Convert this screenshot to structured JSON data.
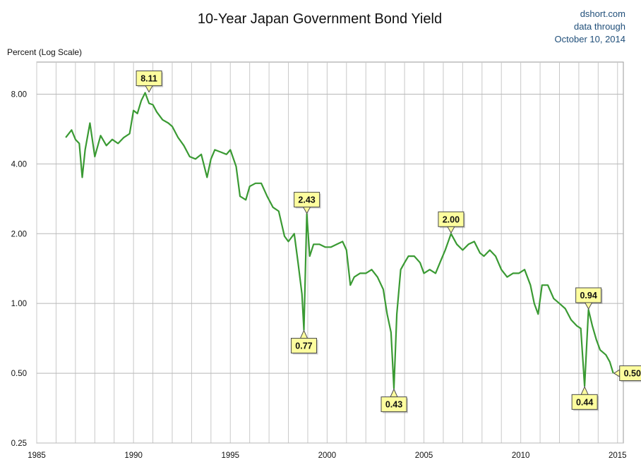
{
  "chart_data": {
    "type": "line",
    "title": "10-Year Japan Government Bond Yield",
    "source_lines": [
      "dshort.com",
      "data through",
      "October 10, 2014"
    ],
    "ylabel": "Percent (Log Scale)",
    "yscale": "log",
    "ylim": [
      0.25,
      11.0
    ],
    "xlim": [
      1985,
      2015.3
    ],
    "yticks": [
      0.25,
      0.5,
      1.0,
      2.0,
      4.0,
      8.0
    ],
    "ytick_labels": [
      "0.25",
      "0.50",
      "1.00",
      "2.00",
      "4.00",
      "8.00"
    ],
    "xticks": [
      1985,
      1990,
      1995,
      2000,
      2005,
      2010,
      2015
    ],
    "xtick_labels": [
      "1985",
      "1990",
      "1995",
      "2000",
      "2005",
      "2010",
      "2015"
    ],
    "grid": true,
    "line_color": "#3a9a33",
    "series": [
      {
        "x": [
          1986.5,
          1986.8,
          1987.0,
          1987.2,
          1987.35,
          1987.5,
          1987.75,
          1988.0,
          1988.3,
          1988.6,
          1988.9,
          1989.2,
          1989.5,
          1989.8,
          1990.0,
          1990.2,
          1990.4,
          1990.6,
          1990.8,
          1991.0,
          1991.2,
          1991.5,
          1991.8,
          1992.0,
          1992.3,
          1992.6,
          1992.9,
          1993.2,
          1993.5,
          1993.8,
          1994.0,
          1994.2,
          1994.5,
          1994.8,
          1995.0,
          1995.3,
          1995.5,
          1995.8,
          1996.0,
          1996.3,
          1996.6,
          1996.9,
          1997.2,
          1997.5,
          1997.8,
          1998.0,
          1998.3,
          1998.5,
          1998.7,
          1998.8,
          1998.95,
          1999.1,
          1999.3,
          1999.6,
          1999.9,
          2000.2,
          2000.5,
          2000.8,
          2001.0,
          2001.2,
          2001.4,
          2001.7,
          2002.0,
          2002.3,
          2002.6,
          2002.9,
          2003.1,
          2003.3,
          2003.45,
          2003.6,
          2003.8,
          2004.0,
          2004.2,
          2004.5,
          2004.8,
          2005.0,
          2005.3,
          2005.6,
          2005.9,
          2006.1,
          2006.4,
          2006.7,
          2007.0,
          2007.3,
          2007.6,
          2007.9,
          2008.1,
          2008.4,
          2008.7,
          2009.0,
          2009.3,
          2009.6,
          2009.9,
          2010.2,
          2010.5,
          2010.7,
          2010.9,
          2011.1,
          2011.4,
          2011.7,
          2012.0,
          2012.3,
          2012.6,
          2012.9,
          2013.1,
          2013.3,
          2013.5,
          2013.7,
          2013.9,
          2014.1,
          2014.4,
          2014.6,
          2014.78
        ],
        "y": [
          5.2,
          5.6,
          5.1,
          4.9,
          3.5,
          4.6,
          6.0,
          4.3,
          5.3,
          4.8,
          5.1,
          4.9,
          5.2,
          5.4,
          6.8,
          6.6,
          7.5,
          8.11,
          7.3,
          7.2,
          6.7,
          6.2,
          6.0,
          5.8,
          5.2,
          4.8,
          4.3,
          4.2,
          4.4,
          3.5,
          4.2,
          4.6,
          4.5,
          4.4,
          4.6,
          3.9,
          2.9,
          2.8,
          3.2,
          3.3,
          3.3,
          2.9,
          2.6,
          2.5,
          1.95,
          1.85,
          2.0,
          1.5,
          1.1,
          0.77,
          2.43,
          1.6,
          1.8,
          1.8,
          1.75,
          1.75,
          1.8,
          1.85,
          1.7,
          1.2,
          1.3,
          1.35,
          1.35,
          1.4,
          1.3,
          1.15,
          0.9,
          0.75,
          0.43,
          0.9,
          1.4,
          1.5,
          1.6,
          1.6,
          1.5,
          1.35,
          1.4,
          1.35,
          1.55,
          1.7,
          2.0,
          1.8,
          1.7,
          1.8,
          1.85,
          1.65,
          1.6,
          1.7,
          1.6,
          1.4,
          1.3,
          1.35,
          1.35,
          1.4,
          1.2,
          1.0,
          0.9,
          1.2,
          1.2,
          1.05,
          1.0,
          0.95,
          0.85,
          0.8,
          0.78,
          0.44,
          0.94,
          0.8,
          0.7,
          0.63,
          0.6,
          0.56,
          0.5
        ]
      }
    ],
    "annotations": [
      {
        "label": "8.11",
        "x": 1990.8,
        "y": 8.11,
        "pos": "above"
      },
      {
        "label": "2.43",
        "x": 1998.95,
        "y": 2.43,
        "pos": "above"
      },
      {
        "label": "0.77",
        "x": 1998.8,
        "y": 0.77,
        "pos": "below"
      },
      {
        "label": "0.43",
        "x": 2003.45,
        "y": 0.43,
        "pos": "below"
      },
      {
        "label": "2.00",
        "x": 2006.4,
        "y": 2.0,
        "pos": "above"
      },
      {
        "label": "0.94",
        "x": 2013.5,
        "y": 0.94,
        "pos": "above"
      },
      {
        "label": "0.44",
        "x": 2013.3,
        "y": 0.44,
        "pos": "below"
      },
      {
        "label": "0.50",
        "x": 2014.78,
        "y": 0.5,
        "pos": "right"
      }
    ]
  }
}
